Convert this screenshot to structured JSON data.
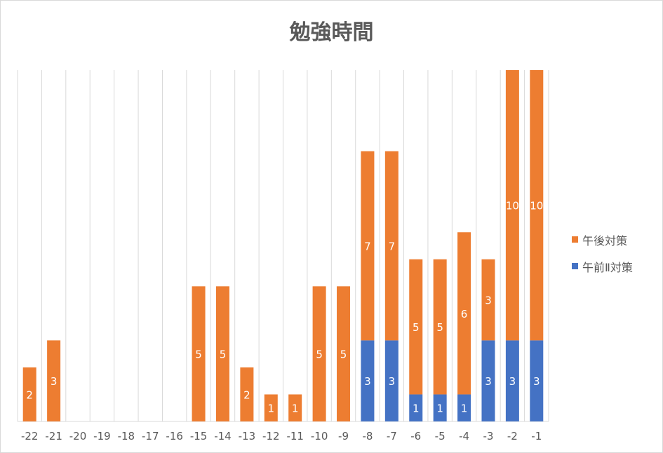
{
  "chart_data": {
    "type": "bar",
    "stacked": true,
    "title": "勉強時間",
    "xlabel": "",
    "ylabel": "",
    "categories": [
      "-22",
      "-21",
      "-20",
      "-19",
      "-18",
      "-17",
      "-16",
      "-15",
      "-14",
      "-13",
      "-12",
      "-11",
      "-10",
      "-9",
      "-8",
      "-7",
      "-6",
      "-5",
      "-4",
      "-3",
      "-2",
      "-1"
    ],
    "series": [
      {
        "name": "午前Ⅱ対策",
        "color": "#4472c4",
        "values": [
          0,
          0,
          0,
          0,
          0,
          0,
          0,
          0,
          0,
          0,
          0,
          0,
          0,
          0,
          3,
          3,
          1,
          1,
          1,
          3,
          3,
          3
        ]
      },
      {
        "name": "午後対策",
        "color": "#ed7d31",
        "values": [
          2,
          3,
          0,
          0,
          0,
          0,
          0,
          5,
          5,
          2,
          1,
          1,
          5,
          5,
          7,
          7,
          5,
          5,
          6,
          3,
          10,
          10
        ]
      }
    ],
    "ylim": [
      0,
      13
    ],
    "grid": "vertical",
    "legend_position": "right"
  }
}
